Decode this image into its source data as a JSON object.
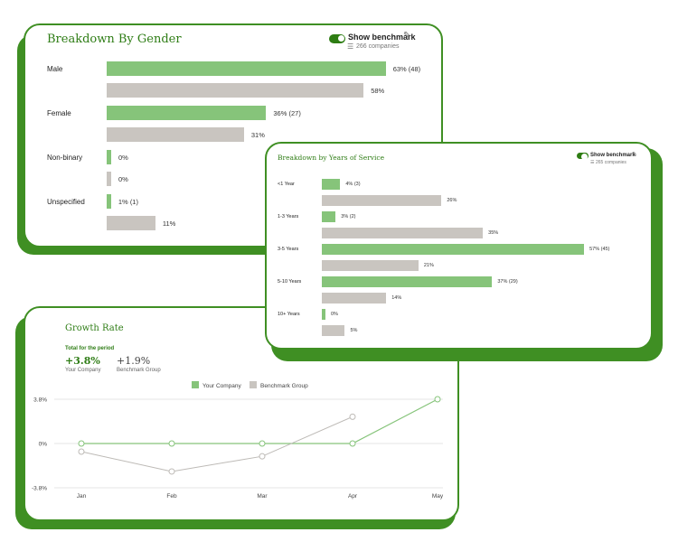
{
  "gender": {
    "title": "Breakdown By Gender",
    "benchmark_label": "Show benchmark",
    "companies": "266 companies",
    "rows": [
      {
        "label": "Male",
        "company_pct": 63,
        "company_text": "63% (48)",
        "bench_pct": 58,
        "bench_text": "58%"
      },
      {
        "label": "Female",
        "company_pct": 36,
        "company_text": "36% (27)",
        "bench_pct": 31,
        "bench_text": "31%"
      },
      {
        "label": "Non-binary",
        "company_pct": 0,
        "company_text": "0%",
        "bench_pct": 0,
        "bench_text": "0%"
      },
      {
        "label": "Unspecified",
        "company_pct": 1,
        "company_text": "1% (1)",
        "bench_pct": 11,
        "bench_text": "11%"
      }
    ]
  },
  "service": {
    "title": "Breakdown by Years of Service",
    "benchmark_label": "Show benchmark",
    "companies": "265 companies",
    "rows": [
      {
        "label": "<1 Year",
        "company_pct": 4,
        "company_text": "4% (3)",
        "bench_pct": 26,
        "bench_text": "26%"
      },
      {
        "label": "1-3 Years",
        "company_pct": 3,
        "company_text": "3% (2)",
        "bench_pct": 35,
        "bench_text": "35%"
      },
      {
        "label": "3-5 Years",
        "company_pct": 57,
        "company_text": "57% (45)",
        "bench_pct": 21,
        "bench_text": "21%"
      },
      {
        "label": "5-10 Years",
        "company_pct": 37,
        "company_text": "37% (29)",
        "bench_pct": 14,
        "bench_text": "14%"
      },
      {
        "label": "10+ Years",
        "company_pct": 0,
        "company_text": "0%",
        "bench_pct": 5,
        "bench_text": "5%"
      }
    ]
  },
  "growth": {
    "title": "Growth Rate",
    "period_label": "Total for the period",
    "company_value": "+3.8%",
    "company_label": "Your Company",
    "bench_value": "+1.9%",
    "bench_label": "Benchmark Group"
  },
  "colors": {
    "accent": "#3f8f23",
    "company": "#86c47a",
    "benchmark": "#c9c5c0",
    "title": "#2f7d16"
  },
  "chart_data": {
    "type": "line",
    "legend": [
      "Your Company",
      "Benchmark Group"
    ],
    "x": [
      "Jan",
      "Feb",
      "Mar",
      "Apr",
      "May"
    ],
    "ylim": [
      -3.8,
      3.8
    ],
    "ytick_labels": [
      "3.8%",
      "0%",
      "-3.8%"
    ],
    "ytick_values": [
      3.8,
      0,
      -3.8
    ],
    "series": [
      {
        "name": "Your Company",
        "values": [
          0,
          0,
          0,
          0,
          3.8
        ],
        "color": "#86c47a"
      },
      {
        "name": "Benchmark Group",
        "values": [
          -0.7,
          -2.4,
          -1.1,
          2.3,
          null
        ],
        "color": "#bdbab6"
      }
    ]
  }
}
